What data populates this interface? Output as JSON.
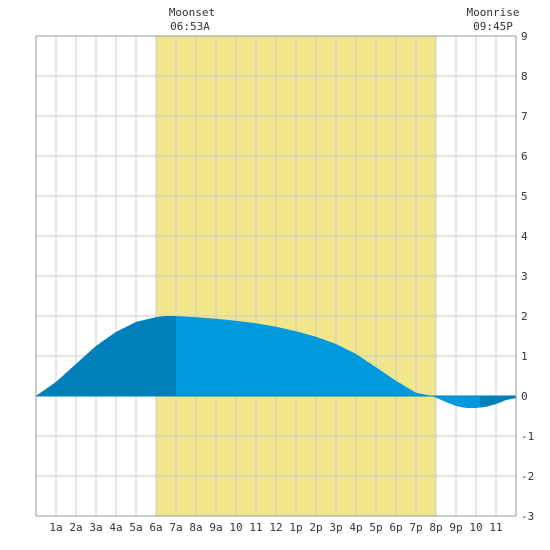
{
  "events": [
    {
      "label": "Moonset",
      "time": "06:53A",
      "hour": 6.883
    },
    {
      "label": "Moonrise",
      "time": "09:45P",
      "hour": 21.75
    }
  ],
  "chart_data": {
    "type": "area",
    "title": "",
    "xlabel": "",
    "ylabel": "",
    "x_range_hours": [
      0,
      24
    ],
    "ylim": [
      -3,
      9
    ],
    "y_ticks": [
      9,
      8,
      7,
      6,
      5,
      4,
      3,
      2,
      1,
      0,
      -1,
      -2,
      -3
    ],
    "x_ticks": [
      {
        "hour": 1,
        "label": "1a"
      },
      {
        "hour": 2,
        "label": "2a"
      },
      {
        "hour": 3,
        "label": "3a"
      },
      {
        "hour": 4,
        "label": "4a"
      },
      {
        "hour": 5,
        "label": "5a"
      },
      {
        "hour": 6,
        "label": "6a"
      },
      {
        "hour": 7,
        "label": "7a"
      },
      {
        "hour": 8,
        "label": "8a"
      },
      {
        "hour": 9,
        "label": "9a"
      },
      {
        "hour": 10,
        "label": "10"
      },
      {
        "hour": 11,
        "label": "11"
      },
      {
        "hour": 12,
        "label": "12"
      },
      {
        "hour": 13,
        "label": "1p"
      },
      {
        "hour": 14,
        "label": "2p"
      },
      {
        "hour": 15,
        "label": "3p"
      },
      {
        "hour": 16,
        "label": "4p"
      },
      {
        "hour": 17,
        "label": "5p"
      },
      {
        "hour": 18,
        "label": "6p"
      },
      {
        "hour": 19,
        "label": "7p"
      },
      {
        "hour": 20,
        "label": "8p"
      },
      {
        "hour": 21,
        "label": "9p"
      },
      {
        "hour": 22,
        "label": "10"
      },
      {
        "hour": 23,
        "label": "11"
      }
    ],
    "daylight_band": [
      6,
      20
    ],
    "dark_shade_periods": [
      [
        0,
        7
      ],
      [
        22.2,
        24
      ]
    ],
    "grid": true,
    "colors": {
      "daylight": "#f0e68c",
      "tide_light": "#0099dd",
      "tide_dark": "#0080bb",
      "grid": "#cccccc",
      "border": "#999999"
    },
    "series": [
      {
        "x": [
          0,
          1,
          2,
          3,
          4,
          5,
          6,
          6.5,
          7,
          8,
          9,
          10,
          11,
          12,
          13,
          14,
          15,
          16,
          17,
          18,
          19,
          19.8,
          20.5,
          21,
          21.5,
          22,
          22.5,
          23,
          23.5,
          24
        ],
        "y": [
          0,
          0.35,
          0.8,
          1.25,
          1.6,
          1.85,
          1.97,
          2.0,
          2.0,
          1.97,
          1.93,
          1.88,
          1.82,
          1.73,
          1.62,
          1.48,
          1.3,
          1.05,
          0.72,
          0.38,
          0.08,
          0,
          -0.15,
          -0.25,
          -0.3,
          -0.3,
          -0.27,
          -0.2,
          -0.1,
          -0.05
        ]
      }
    ]
  }
}
